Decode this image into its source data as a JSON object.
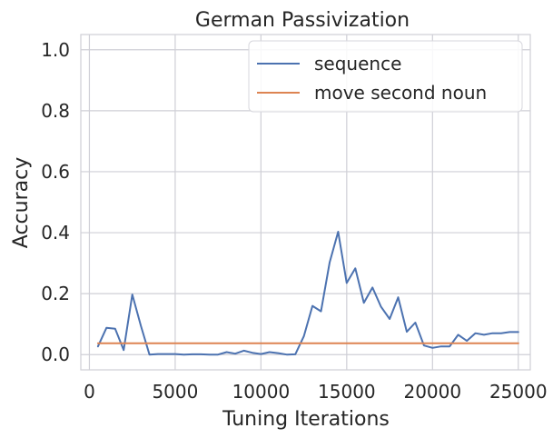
{
  "chart_data": {
    "type": "line",
    "title": "German Passivization",
    "xlabel": "Tuning Iterations",
    "ylabel": "Accuracy",
    "xlim": [
      -500,
      25700
    ],
    "ylim": [
      -0.05,
      1.05
    ],
    "xticks": [
      0,
      5000,
      10000,
      15000,
      20000,
      25000
    ],
    "yticks": [
      0.0,
      0.2,
      0.4,
      0.6,
      0.8,
      1.0
    ],
    "xtick_labels": [
      "0",
      "5000",
      "10000",
      "15000",
      "20000",
      "25000"
    ],
    "ytick_labels": [
      "0.0",
      "0.2",
      "0.4",
      "0.6",
      "0.8",
      "1.0"
    ],
    "grid": true,
    "legend_position": "top-right",
    "series": [
      {
        "name": "sequence",
        "color": "#4c72b0",
        "x": [
          500,
          1000,
          1500,
          2000,
          2500,
          3000,
          3500,
          4000,
          4500,
          5000,
          5500,
          6000,
          6500,
          7000,
          7500,
          8000,
          8500,
          9000,
          9500,
          10000,
          10500,
          11000,
          11500,
          12000,
          12500,
          13000,
          13500,
          14000,
          14500,
          15000,
          15500,
          16000,
          16500,
          17000,
          17500,
          18000,
          18500,
          19000,
          19500,
          20000,
          20500,
          21000,
          21500,
          22000,
          22500,
          23000,
          23500,
          24000,
          24500,
          25000
        ],
        "y": [
          0.027,
          0.088,
          0.085,
          0.015,
          0.197,
          0.095,
          0.0,
          0.002,
          0.002,
          0.002,
          0.0,
          0.001,
          0.001,
          0.0,
          0.0,
          0.008,
          0.003,
          0.013,
          0.006,
          0.002,
          0.008,
          0.005,
          0.0,
          0.001,
          0.06,
          0.16,
          0.142,
          0.302,
          0.403,
          0.235,
          0.283,
          0.17,
          0.22,
          0.157,
          0.117,
          0.188,
          0.075,
          0.105,
          0.03,
          0.022,
          0.027,
          0.027,
          0.065,
          0.045,
          0.07,
          0.065,
          0.07,
          0.07,
          0.074,
          0.074
        ]
      },
      {
        "name": "move second noun",
        "color": "#dd8452",
        "x": [
          500,
          25000
        ],
        "y": [
          0.037,
          0.037
        ]
      }
    ]
  }
}
